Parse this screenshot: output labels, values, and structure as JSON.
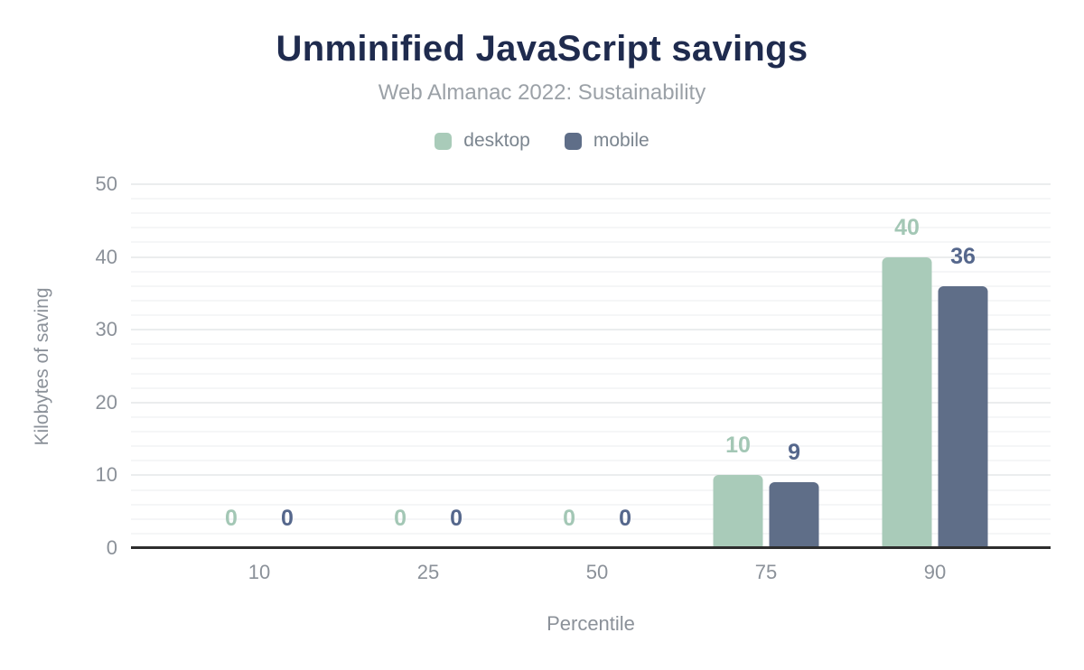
{
  "chart_data": {
    "type": "bar",
    "title": "Unminified JavaScript savings",
    "subtitle": "Web Almanac 2022: Sustainability",
    "xlabel": "Percentile",
    "ylabel": "Kilobytes of saving",
    "categories": [
      "10",
      "25",
      "50",
      "75",
      "90"
    ],
    "series": [
      {
        "name": "desktop",
        "color": "#a9cbb9",
        "label_color": "#a3c7b5",
        "values": [
          0,
          0,
          0,
          10,
          40
        ]
      },
      {
        "name": "mobile",
        "color": "#5f6e88",
        "label_color": "#55678c",
        "values": [
          0,
          0,
          0,
          9,
          36
        ]
      }
    ],
    "ylim": [
      0,
      50
    ],
    "y_ticks": [
      0,
      10,
      20,
      30,
      40,
      50
    ],
    "minor_grid_step": 2,
    "grid": true,
    "legend_position": "top",
    "data_labels": true
  },
  "colors": {
    "title": "#1f2b4e",
    "subtitle": "#9ba1a7",
    "axis_text": "#8b9199",
    "grid_major": "#ebedee",
    "grid_minor": "#f5f6f7",
    "axis_line": "#2d2d2d",
    "background": "#ffffff"
  }
}
